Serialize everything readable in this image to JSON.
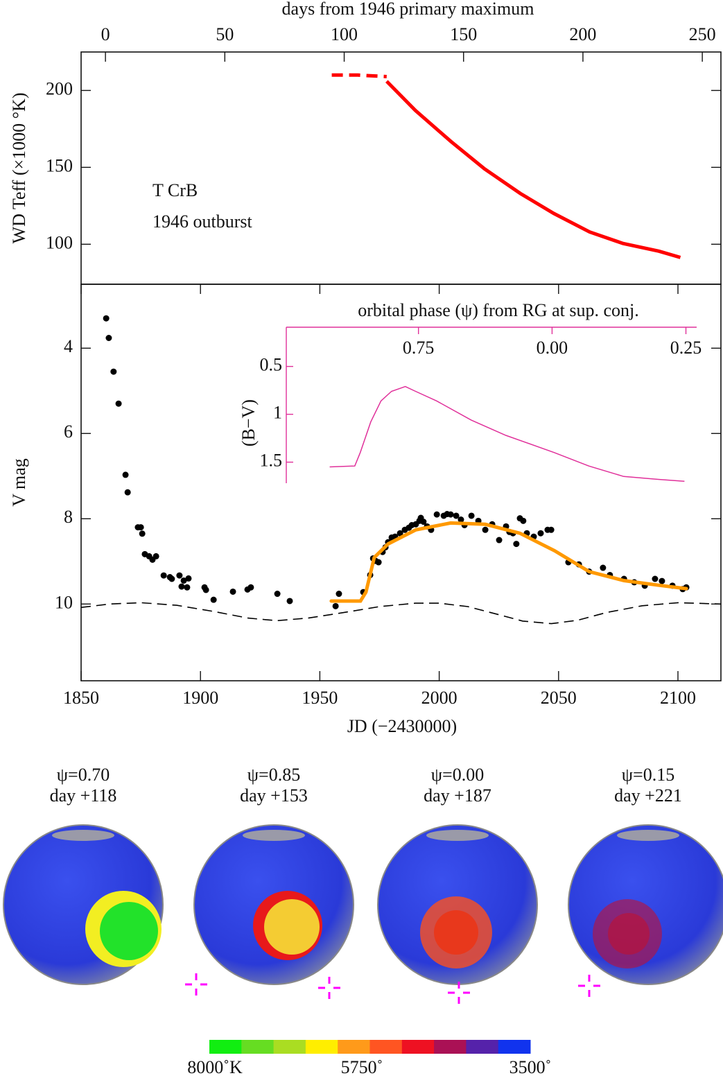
{
  "chart_data": [
    {
      "type": "line",
      "ylabel": "WD Teff (×1000 °K)",
      "x2label": "days from 1946 primary maximum",
      "xlim": [
        1850,
        2118
      ],
      "ylim": [
        74,
        225
      ],
      "yticks": [
        100,
        150,
        200
      ],
      "x2lim": [
        -10.2,
        257.8
      ],
      "x2ticks": [
        0,
        50,
        100,
        150,
        200,
        250
      ],
      "annotations": [
        "T CrB",
        "1946 outburst"
      ],
      "series": [
        {
          "color": "#ff0000",
          "style": "dashed",
          "x": [
            1955,
            1966,
            1978
          ],
          "values": [
            210,
            210,
            209
          ]
        },
        {
          "color": "#ff0000",
          "style": "solid",
          "x": [
            1978,
            1990,
            2005,
            2019,
            2034,
            2048,
            2063,
            2077,
            2092,
            2101
          ],
          "values": [
            206,
            187,
            166.7,
            149,
            133,
            120,
            108,
            100.5,
            95.5,
            91.4
          ]
        }
      ]
    },
    {
      "type": "scatter",
      "ylabel": "V mag",
      "xlabel": "JD (−2430000)",
      "xlim": [
        1850,
        2118
      ],
      "ylim": [
        11.8,
        2.5
      ],
      "xticks": [
        1850,
        1900,
        1950,
        2000,
        2050,
        2100
      ],
      "yticks": [
        4,
        6,
        8,
        10
      ],
      "series": [
        {
          "color": "#000000",
          "mode": "points",
          "x": [
            1860.5,
            1861.6,
            1863.6,
            1865.7,
            1868.6,
            1869.5,
            1873.8,
            1875.0,
            1875.6,
            1876.7,
            1878.5,
            1879.9,
            1881.4,
            1884.6,
            1887.2,
            1888.0,
            1891.2,
            1892.1,
            1893.0,
            1894.4,
            1895.0,
            1901.7,
            1902.3,
            1905.5,
            1913.6,
            1919.7,
            1921.1,
            1932.2,
            1937.4,
            1956.6,
            1958.0,
            1968.2,
            1971.1,
            1972.3,
            1973.4,
            1974.6,
            1976.3,
            1977.5,
            1978.6,
            1980.1,
            1981.5,
            1983.6,
            1985.6,
            1987.3,
            1988.5,
            1990.2,
            1991.7,
            1992.3,
            1993.4,
            1994.9,
            1996.6,
            1999.0,
            2001.9,
            2003.3,
            2004.8,
            2007.1,
            2009.1,
            2010.6,
            2013.5,
            2016.4,
            2019.3,
            2022.2,
            2025.1,
            2028.0,
            2029.4,
            2030.9,
            2032.3,
            2033.8,
            2035.2,
            2036.7,
            2039.6,
            2042.5,
            2045.4,
            2046.9,
            2054.1,
            2058.5,
            2062.8,
            2068.6,
            2071.5,
            2077.4,
            2081.7,
            2086.1,
            2090.4,
            2093.3,
            2097.7,
            2102.0,
            2103.5
          ],
          "values": [
            3.3,
            3.76,
            4.55,
            5.3,
            6.97,
            7.38,
            8.2,
            8.2,
            8.35,
            8.83,
            8.88,
            8.96,
            8.88,
            9.33,
            9.37,
            9.41,
            9.33,
            9.59,
            9.45,
            9.61,
            9.4,
            9.61,
            9.67,
            9.9,
            9.71,
            9.66,
            9.61,
            9.76,
            9.93,
            10.05,
            9.76,
            9.72,
            9.32,
            8.93,
            8.99,
            9.02,
            8.78,
            8.67,
            8.55,
            8.44,
            8.42,
            8.34,
            8.26,
            8.21,
            8.15,
            8.13,
            8.05,
            7.98,
            8.07,
            8.18,
            8.26,
            7.9,
            7.93,
            7.89,
            7.9,
            7.93,
            8.02,
            8.15,
            7.93,
            8.05,
            8.26,
            8.13,
            8.5,
            8.18,
            8.31,
            8.34,
            8.59,
            7.99,
            8.05,
            8.34,
            8.42,
            8.34,
            8.26,
            8.26,
            9.02,
            9.07,
            9.24,
            9.15,
            9.32,
            9.41,
            9.49,
            9.57,
            9.41,
            9.46,
            9.57,
            9.65,
            9.61
          ]
        },
        {
          "color": "#ff9900",
          "mode": "line",
          "x": [
            1954.8,
            1967.0,
            1969.3,
            1972.8,
            1978.6,
            1990.2,
            2004.8,
            2019.3,
            2033.8,
            2048.3,
            2062.8,
            2077.4,
            2091.9,
            2103.5
          ],
          "values": [
            9.93,
            9.93,
            9.72,
            8.91,
            8.59,
            8.26,
            8.1,
            8.13,
            8.34,
            8.75,
            9.24,
            9.45,
            9.56,
            9.64
          ]
        },
        {
          "color": "#000000",
          "mode": "dashed",
          "x": [
            1850,
            1862,
            1875,
            1890,
            1905,
            1920,
            1932,
            1945,
            1960,
            1975,
            1990,
            2000,
            2012,
            2025,
            2035,
            2047,
            2058,
            2070,
            2085,
            2100,
            2118
          ],
          "values": [
            10.08,
            10.0,
            9.97,
            10.03,
            10.17,
            10.33,
            10.39,
            10.33,
            10.2,
            10.06,
            9.98,
            9.98,
            10.06,
            10.25,
            10.4,
            10.46,
            10.38,
            10.2,
            10.04,
            9.97,
            10.0
          ]
        }
      ]
    },
    {
      "type": "line",
      "title": "orbital phase (ψ) from RG at sup. conj.",
      "ylabel": "(B−V)",
      "xlim": [
        1936,
        2108
      ],
      "ylim": [
        1.72,
        0.09
      ],
      "xticks": [
        {
          "value": 1991.4,
          "label": "0.75"
        },
        {
          "value": 2047.4,
          "label": "0.00"
        },
        {
          "value": 2103.5,
          "label": "0.25"
        }
      ],
      "yticks": [
        0.5,
        1,
        1.5
      ],
      "color": "#e0309a",
      "x": [
        1954.2,
        1964.7,
        1967.0,
        1971.4,
        1975.7,
        1980.1,
        1985.9,
        1990.2,
        1999.0,
        2013.5,
        2028.0,
        2048.3,
        2062.8,
        2077.4,
        2091.9,
        2102.9
      ],
      "values": [
        1.55,
        1.54,
        1.4,
        1.08,
        0.86,
        0.76,
        0.71,
        0.76,
        0.86,
        1.06,
        1.22,
        1.4,
        1.54,
        1.65,
        1.68,
        1.7
      ]
    }
  ],
  "globes": [
    {
      "label": "ψ=0.70",
      "day": "day +118"
    },
    {
      "label": "ψ=0.85",
      "day": "day +153"
    },
    {
      "label": "ψ=0.00",
      "day": "day +187"
    },
    {
      "label": "ψ=0.15",
      "day": "day +221"
    }
  ],
  "colorbar": {
    "colors": [
      "#11ee11",
      "#66dd22",
      "#aadd22",
      "#ffee00",
      "#ff9a1a",
      "#ff5522",
      "#ee1122",
      "#aa1155",
      "#5522aa",
      "#1133ee"
    ],
    "labels": [
      "8000˚K",
      "5750˚",
      "3500˚"
    ]
  }
}
